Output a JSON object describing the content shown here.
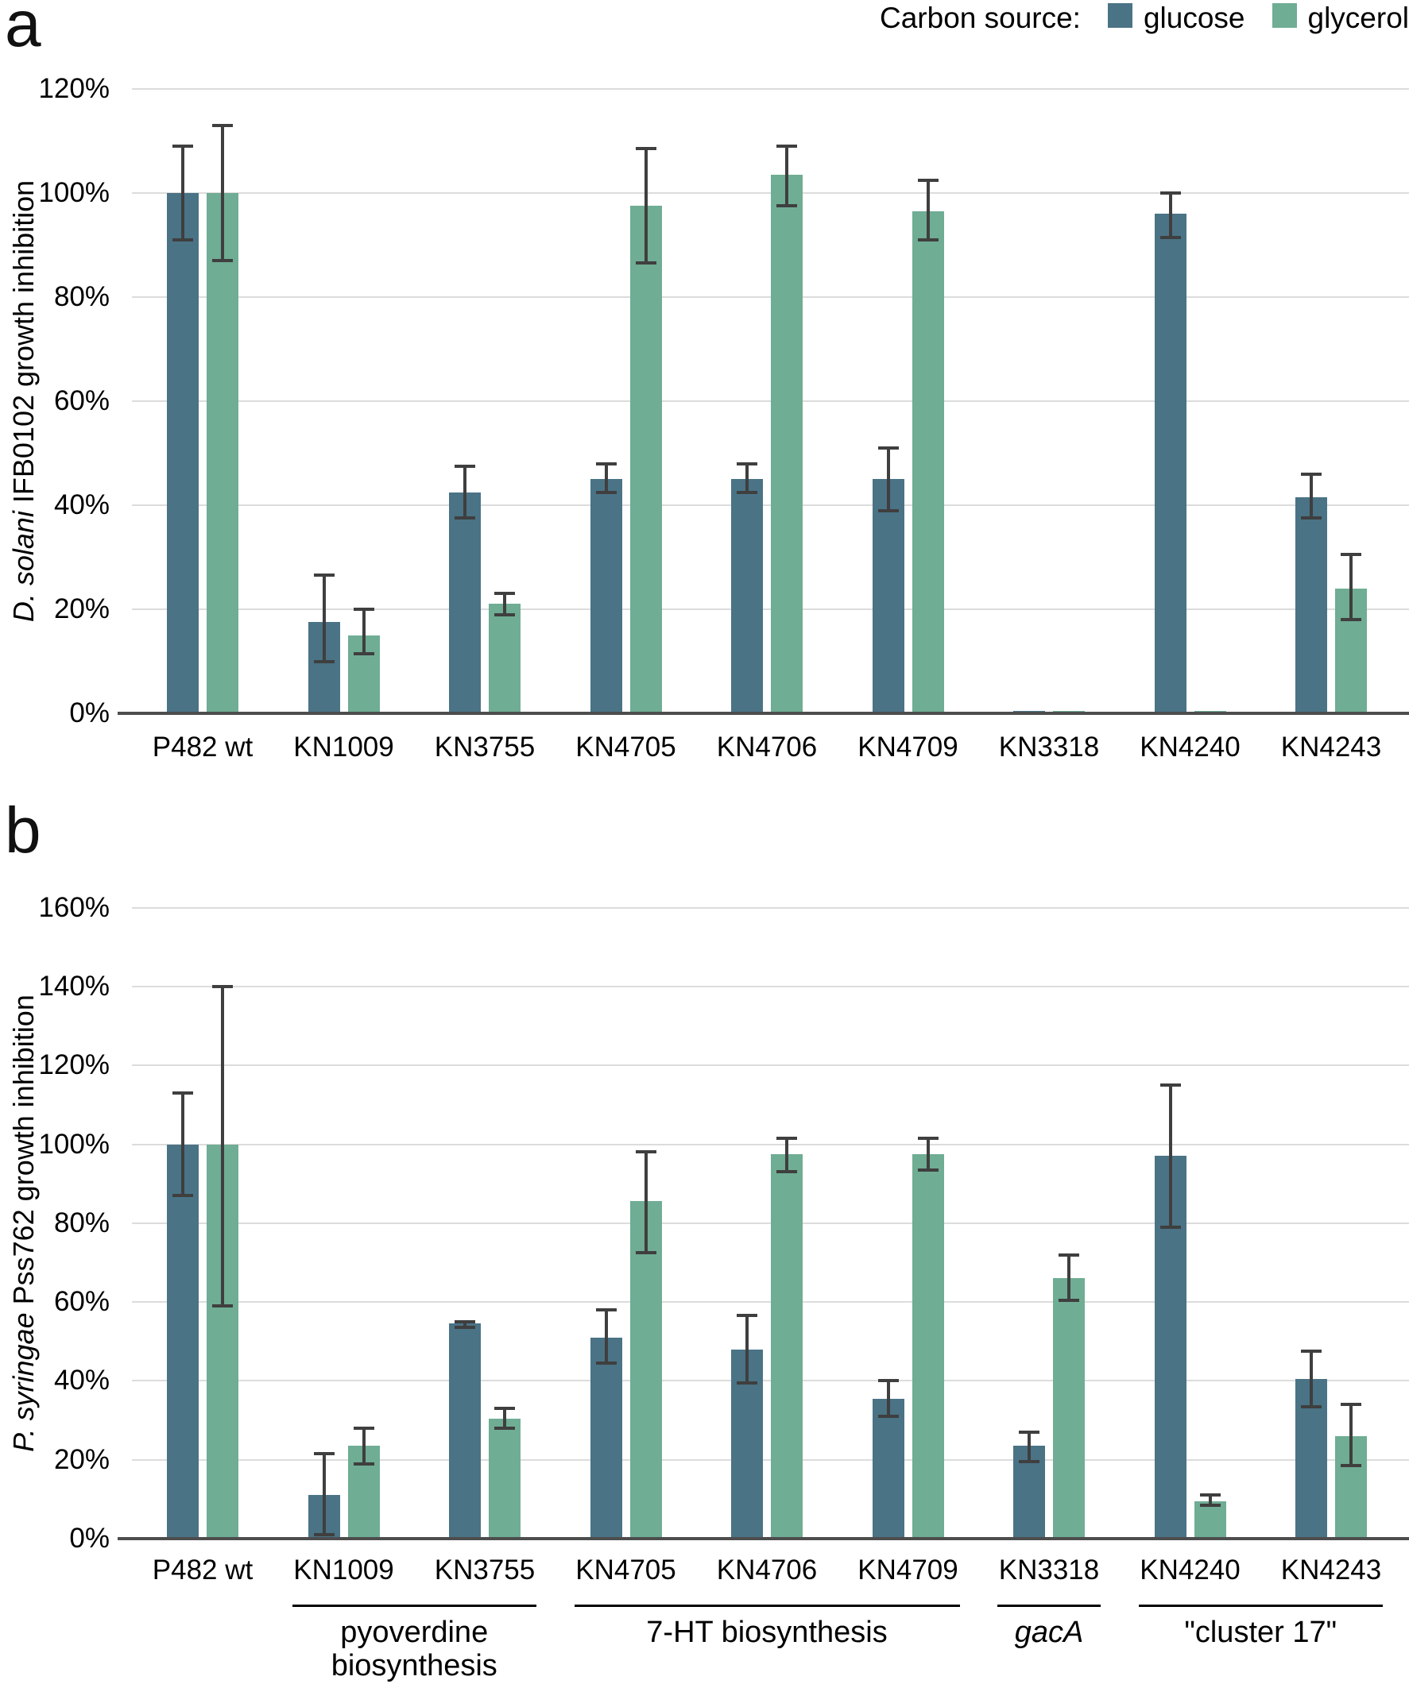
{
  "panel_letters": {
    "a": "a",
    "b": "b"
  },
  "legend": {
    "label": "Carbon source:",
    "items": [
      {
        "name": "glucose",
        "color": "#4a7386"
      },
      {
        "name": "glycerol",
        "color": "#6fad94"
      }
    ]
  },
  "colors": {
    "glucose": "#4a7386",
    "glycerol": "#6fad94",
    "error_bar": "#3f3f3f",
    "gridline": "#dcdcdc",
    "axis_line": "#4d4d4d",
    "text": "#000000"
  },
  "chart_data": [
    {
      "type": "bar",
      "panel": "a",
      "ylabel_italic": "D. solani",
      "ylabel_rest": " IFB0102 growth inhibition",
      "ylim": [
        0,
        120
      ],
      "grid": true,
      "legend_position": "top-right",
      "yticks": [
        "0%",
        "20%",
        "40%",
        "60%",
        "80%",
        "100%",
        "120%"
      ],
      "categories": [
        "P482 wt",
        "KN1009",
        "KN3755",
        "KN4705",
        "KN4706",
        "KN4709",
        "KN3318",
        "KN4240",
        "KN4243"
      ],
      "series": [
        {
          "name": "glucose",
          "values": [
            100,
            17.5,
            42.5,
            45,
            45,
            45,
            0.5,
            96,
            41.5
          ],
          "err_low": [
            91,
            10,
            37.5,
            42.5,
            42.5,
            39,
            null,
            91.5,
            37.5
          ],
          "err_high": [
            109,
            26.5,
            47.5,
            48,
            48,
            51,
            null,
            100,
            46
          ]
        },
        {
          "name": "glycerol",
          "values": [
            100,
            15,
            21,
            97.5,
            103.5,
            96.5,
            0.5,
            0.5,
            24
          ],
          "err_low": [
            87,
            11.5,
            19,
            86.5,
            97.5,
            91,
            null,
            null,
            18
          ],
          "err_high": [
            113,
            20,
            23,
            108.5,
            109,
            102.5,
            null,
            null,
            30.5
          ]
        }
      ],
      "groups": []
    },
    {
      "type": "bar",
      "panel": "b",
      "ylabel_italic": "P. syringae",
      "ylabel_rest": "  Pss762 growth inhibition",
      "ylim": [
        0,
        160
      ],
      "grid": true,
      "yticks": [
        "0%",
        "20%",
        "40%",
        "60%",
        "80%",
        "100%",
        "120%",
        "140%",
        "160%"
      ],
      "categories": [
        "P482 wt",
        "KN1009",
        "KN3755",
        "KN4705",
        "KN4706",
        "KN4709",
        "KN3318",
        "KN4240",
        "KN4243"
      ],
      "series": [
        {
          "name": "glucose",
          "values": [
            100,
            11,
            54.5,
            51,
            48,
            35.5,
            23.5,
            97,
            40.5
          ],
          "err_low": [
            87,
            1,
            53.5,
            44.5,
            39.5,
            31,
            19.5,
            79,
            33.5
          ],
          "err_high": [
            113,
            21.5,
            55,
            58,
            56.5,
            40,
            27,
            115,
            47.5
          ]
        },
        {
          "name": "glycerol",
          "values": [
            100,
            23.5,
            30.5,
            85.5,
            97.5,
            97.5,
            66,
            9.5,
            26
          ],
          "err_low": [
            59,
            19,
            28,
            72.5,
            93,
            93.5,
            60.5,
            8.5,
            18.5
          ],
          "err_high": [
            140,
            28,
            33,
            98,
            101.5,
            101.5,
            72,
            11,
            34
          ]
        }
      ],
      "groups": [
        {
          "label_lines": [
            "pyoverdine",
            "biosynthesis"
          ],
          "italic": false,
          "from": 1,
          "to": 2
        },
        {
          "label_lines": [
            "7-HT biosynthesis"
          ],
          "italic": false,
          "from": 3,
          "to": 5
        },
        {
          "label_lines": [
            "gacA"
          ],
          "italic": true,
          "from": 6,
          "to": 6
        },
        {
          "label_lines": [
            "\"cluster 17\""
          ],
          "italic": false,
          "from": 7,
          "to": 8
        }
      ]
    }
  ]
}
